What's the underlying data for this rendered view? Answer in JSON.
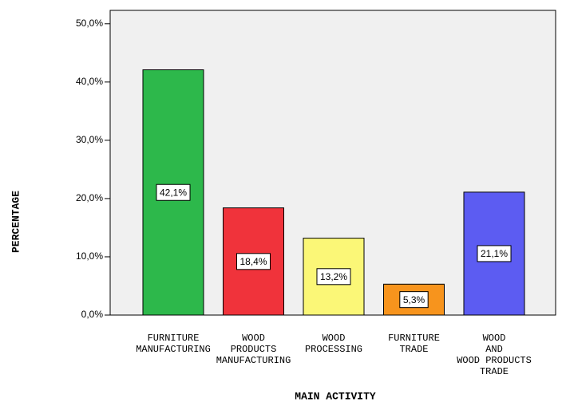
{
  "chart_data": {
    "type": "bar",
    "x_label": "MAIN ACTIVITY",
    "y_label": "PERCENTAGE",
    "categories": [
      "FURNITURE\nMANUFACTURING",
      "WOOD\nPRODUCTS\nMANUFACTURING",
      "WOOD\nPROCESSING",
      "FURNITURE\nTRADE",
      "WOOD\nAND\nWOOD PRODUCTS\nTRADE"
    ],
    "values": [
      42.1,
      18.4,
      13.2,
      5.3,
      21.1
    ],
    "value_labels": [
      "42,1%",
      "18,4%",
      "13,2%",
      "5,3%",
      "21,1%"
    ],
    "colors": [
      "#2db84b",
      "#f0333b",
      "#fbf777",
      "#f7941d",
      "#5c5cf2"
    ],
    "ylim": [
      0,
      52.3
    ],
    "yticks": [
      {
        "value": 0,
        "label": "0,0%"
      },
      {
        "value": 10,
        "label": "10,0%"
      },
      {
        "value": 20,
        "label": "20,0%"
      },
      {
        "value": 30,
        "label": "30,0%"
      },
      {
        "value": 40,
        "label": "40,0%"
      },
      {
        "value": 50,
        "label": "50,0%"
      }
    ]
  }
}
